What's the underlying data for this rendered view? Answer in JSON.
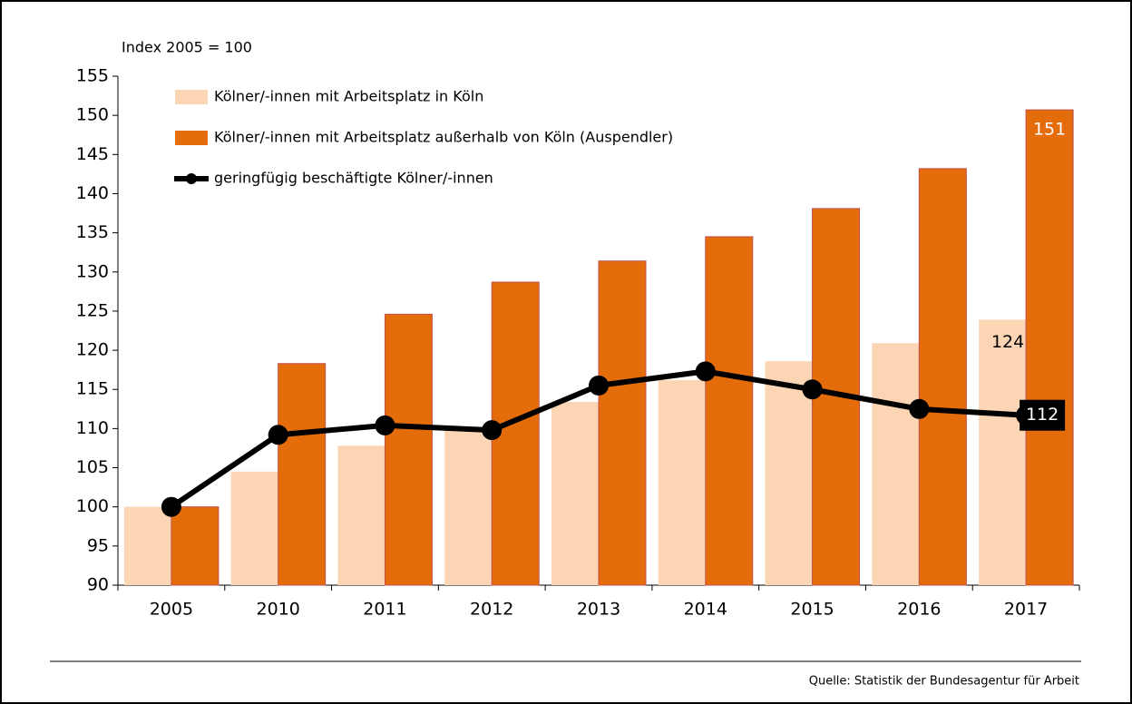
{
  "chart_data": {
    "type": "bar",
    "y_axis_label": "Index 2005 = 100",
    "source": "Quelle: Statistik der Bundesagentur für Arbeit",
    "categories": [
      "2005",
      "2010",
      "2011",
      "2012",
      "2013",
      "2014",
      "2015",
      "2016",
      "2017"
    ],
    "ylim": [
      90,
      155
    ],
    "yticks": [
      90,
      95,
      100,
      105,
      110,
      115,
      120,
      125,
      130,
      135,
      140,
      145,
      150,
      155
    ],
    "grid": false,
    "legend": "top-left",
    "series": [
      {
        "name": "Kölner/-innen mit Arbeitsplatz in Köln",
        "type": "bar",
        "color": "#fcd5b5",
        "values": [
          100,
          104.5,
          107.8,
          110.2,
          113.4,
          116.2,
          118.6,
          120.9,
          123.9
        ],
        "value_labels": [
          null,
          null,
          null,
          null,
          null,
          null,
          null,
          null,
          "124"
        ]
      },
      {
        "name": "Kölner/-innen mit Arbeitsplatz außerhalb von Köln (Auspendler)",
        "type": "bar",
        "color": "#e46c0a",
        "values": [
          100,
          118.3,
          124.6,
          128.7,
          131.4,
          134.5,
          138.1,
          143.2,
          150.7
        ],
        "value_labels": [
          null,
          null,
          null,
          null,
          null,
          null,
          null,
          null,
          "151"
        ]
      },
      {
        "name": "geringfügig beschäftigte Kölner/-innen",
        "type": "line",
        "color": "#000000",
        "values": [
          100,
          109.2,
          110.4,
          109.8,
          115.5,
          117.3,
          115,
          112.5,
          111.7
        ],
        "value_labels": [
          null,
          null,
          null,
          null,
          null,
          null,
          null,
          null,
          "112"
        ]
      }
    ]
  }
}
